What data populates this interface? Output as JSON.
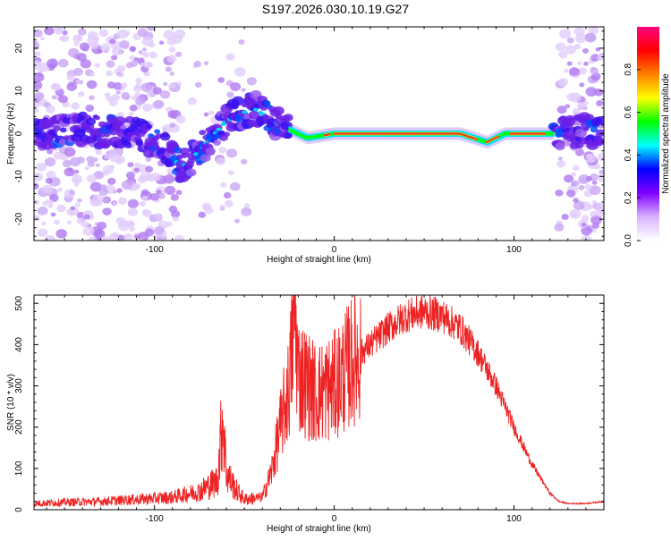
{
  "figure": {
    "title": "S197.2026.030.10.19.G27"
  },
  "chart_data": [
    {
      "type": "heatmap",
      "title": "S197.2026.030.10.19.G27",
      "xlabel": "Height of straight line (km)",
      "ylabel": "Frequency (Hz)",
      "xlim": [
        -167,
        150
      ],
      "ylim": [
        -25,
        25
      ],
      "x_ticks": [
        -100,
        0,
        100
      ],
      "x_tick_labels": [
        "-100",
        "0",
        "100"
      ],
      "y_ticks": [
        -20,
        -10,
        0,
        10,
        20
      ],
      "y_tick_labels": [
        "-20",
        "-10",
        "0",
        "10",
        "20"
      ],
      "colorbar": {
        "label": "Normalized spectral amplitude",
        "range": [
          0,
          1
        ],
        "ticks": [
          0.0,
          0.2,
          0.4,
          0.6,
          0.8
        ],
        "tick_labels": [
          "0.0",
          "0.2",
          "0.4",
          "0.6",
          "0.8"
        ],
        "colors": [
          "#ffffff",
          "#d9b3ff",
          "#8000ff",
          "#0000ff",
          "#00ffff",
          "#00ff00",
          "#ffff00",
          "#ff8000",
          "#ff0000",
          "#ff0080"
        ]
      },
      "trace": {
        "description_points_x": [
          -167,
          -140,
          -110,
          -95,
          -85,
          -75,
          -60,
          -45,
          -30,
          -15,
          0,
          40,
          70,
          85,
          95,
          120,
          150
        ],
        "frequency_hz": [
          0,
          1,
          0,
          -3,
          -8,
          -4,
          3,
          6,
          2,
          -1,
          0,
          0,
          0,
          -2,
          0,
          0,
          1
        ]
      }
    },
    {
      "type": "line",
      "xlabel": "Height of straight line (km)",
      "ylabel": "SNR (10 * v/v)",
      "xlim": [
        -167,
        150
      ],
      "ylim": [
        0,
        520
      ],
      "x_ticks": [
        -100,
        0,
        100
      ],
      "x_tick_labels": [
        "-100",
        "0",
        "100"
      ],
      "y_ticks": [
        0,
        100,
        200,
        300,
        400,
        500
      ],
      "y_tick_labels": [
        "0",
        "100",
        "200",
        "300",
        "400",
        "500"
      ],
      "color": "#ee2222",
      "series": [
        {
          "name": "SNR",
          "x": [
            -167,
            -150,
            -130,
            -110,
            -90,
            -75,
            -65,
            -62,
            -60,
            -55,
            -50,
            -40,
            -35,
            -30,
            -25,
            -22,
            -20,
            -10,
            0,
            10,
            20,
            30,
            40,
            50,
            60,
            70,
            80,
            90,
            100,
            110,
            120,
            125,
            130,
            140,
            150
          ],
          "values": [
            15,
            18,
            20,
            25,
            30,
            45,
            70,
            230,
            90,
            50,
            25,
            30,
            90,
            200,
            300,
            480,
            330,
            280,
            300,
            360,
            400,
            440,
            470,
            480,
            470,
            440,
            380,
            300,
            200,
            110,
            40,
            20,
            15,
            15,
            20
          ]
        }
      ]
    }
  ]
}
